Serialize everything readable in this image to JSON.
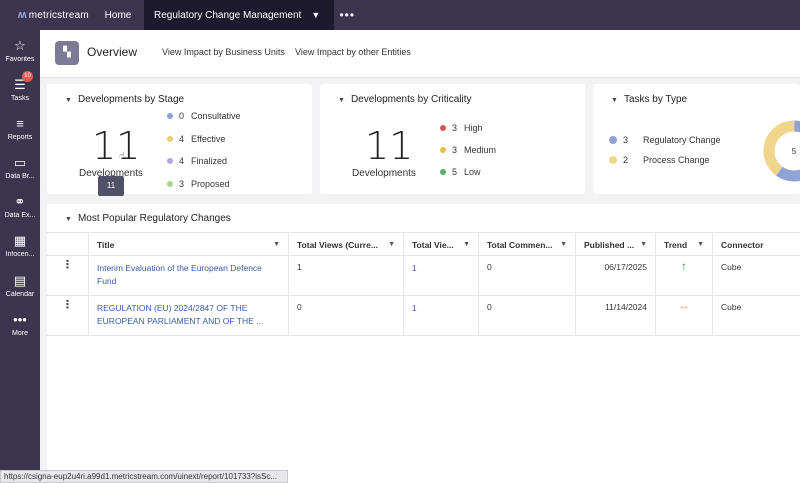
{
  "topbar": {
    "logo": "metricstream",
    "home": "Home",
    "active_tab": "Regulatory Change Management",
    "more": "•••"
  },
  "sidebar": {
    "items": [
      {
        "label": "Favorites",
        "icon": "star-icon"
      },
      {
        "label": "Tasks",
        "icon": "tasks-icon",
        "badge": "10"
      },
      {
        "label": "Reports",
        "icon": "list-icon"
      },
      {
        "label": "Data Br...",
        "icon": "folder-icon"
      },
      {
        "label": "Data Ex...",
        "icon": "share-icon"
      },
      {
        "label": "Infocen...",
        "icon": "grid-icon"
      },
      {
        "label": "Calendar",
        "icon": "calendar-icon"
      },
      {
        "label": "More",
        "icon": "more-icon"
      }
    ]
  },
  "overview": {
    "title": "Overview",
    "links": [
      "View Impact by Business Units",
      "View Impact by other Entities"
    ]
  },
  "stage_card": {
    "title": "Developments by Stage",
    "total": "11",
    "total_label": "Developments",
    "tooltip": "11",
    "legend": [
      {
        "count": "0",
        "label": "Consultative",
        "color": "#8fa3d6"
      },
      {
        "count": "4",
        "label": "Effective",
        "color": "#e8cf74"
      },
      {
        "count": "4",
        "label": "Finalized",
        "color": "#b9a3de"
      },
      {
        "count": "3",
        "label": "Proposed",
        "color": "#a7d68a"
      }
    ]
  },
  "criticality_card": {
    "title": "Developments by Criticality",
    "total": "11",
    "total_label": "Developments",
    "legend": [
      {
        "count": "3",
        "label": "High",
        "color": "#d9574a"
      },
      {
        "count": "3",
        "label": "Medium",
        "color": "#e6c04a"
      },
      {
        "count": "5",
        "label": "Low",
        "color": "#5cae6a"
      }
    ]
  },
  "tasks_card": {
    "title": "Tasks by Type",
    "donut_label": "5",
    "legend": [
      {
        "count": "3",
        "label": "Regulatory Change",
        "color": "#8fa3d6"
      },
      {
        "count": "2",
        "label": "Process Change",
        "color": "#f0d68a"
      }
    ],
    "chart_data": {
      "type": "pie",
      "categories": [
        "Regulatory Change",
        "Process Change"
      ],
      "values": [
        3,
        2
      ]
    }
  },
  "table": {
    "title": "Most Popular Regulatory Changes",
    "columns": [
      "Title",
      "Total Views (Curre...",
      "Total Vie...",
      "Total Commen...",
      "Published ...",
      "Trend",
      "Connector"
    ],
    "rows": [
      {
        "title": "Interim Evaluation of the European Defence Fund",
        "views_current": "1",
        "views_total": "1",
        "comments": "0",
        "published": "06/17/2025",
        "trend": "↑",
        "connector": "Cube"
      },
      {
        "title": "REGULATION (EU) 2024/2847 OF THE EUROPEAN PARLIAMENT AND OF THE ...",
        "views_current": "0",
        "views_total": "1",
        "comments": "0",
        "published": "11/14/2024",
        "trend": "↔",
        "connector": "Cube"
      }
    ]
  },
  "statusbar": "https://csigna-eup2u4ri.a99d1.metricstream.com/uinext/report/101733?isSc..."
}
